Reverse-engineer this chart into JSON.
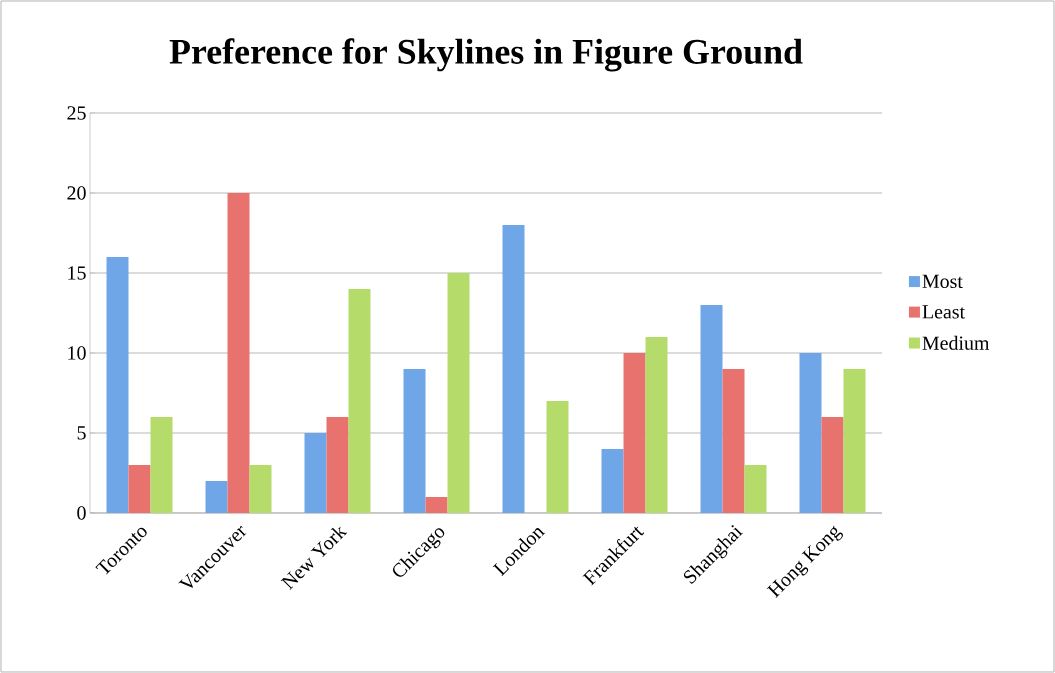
{
  "chart_data": {
    "type": "bar",
    "title": "Preference for Skylines in Figure Ground",
    "categories": [
      "Toronto",
      "Vancouver",
      "New York",
      "Chicago",
      "London",
      "Frankfurt",
      "Shanghai",
      "Hong Kong"
    ],
    "series": [
      {
        "name": "Most",
        "color": "#6fa6e8",
        "values": [
          16,
          2,
          5,
          9,
          18,
          4,
          13,
          10
        ]
      },
      {
        "name": "Least",
        "color": "#e8736e",
        "values": [
          3,
          20,
          6,
          1,
          0,
          10,
          9,
          6
        ]
      },
      {
        "name": "Medium",
        "color": "#b5dc6a",
        "values": [
          6,
          3,
          14,
          15,
          7,
          11,
          3,
          9
        ]
      }
    ],
    "ylim": [
      0,
      25
    ],
    "yticks": [
      0,
      5,
      10,
      15,
      20,
      25
    ],
    "grid": "y",
    "legend": "right"
  }
}
